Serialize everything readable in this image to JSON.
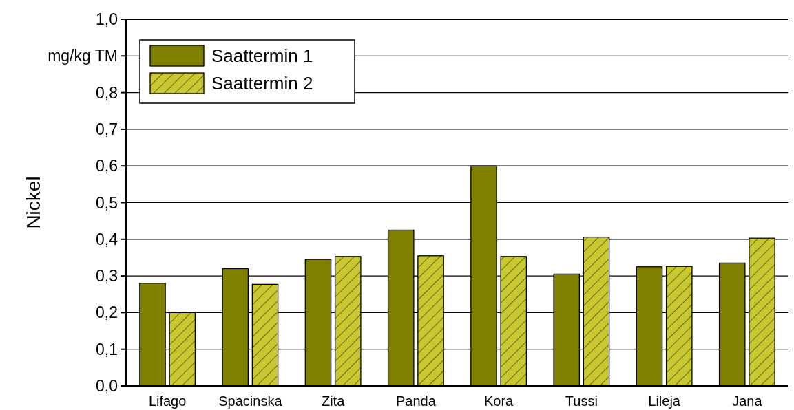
{
  "chart_data": {
    "type": "bar",
    "ylabel": "Nickel",
    "categories": [
      "Lifago",
      "Spacinska",
      "Zita",
      "Panda",
      "Kora",
      "Tussi",
      "Lileja",
      "Jana"
    ],
    "series": [
      {
        "name": "Saattermin 1",
        "color": "#808000",
        "values": [
          0.28,
          0.32,
          0.345,
          0.425,
          0.6,
          0.305,
          0.325,
          0.335
        ]
      },
      {
        "name": "Saattermin 2",
        "color": "#c8c832",
        "values": [
          0.2,
          0.277,
          0.353,
          0.355,
          0.353,
          0.406,
          0.326,
          0.403
        ]
      }
    ],
    "ylim": [
      0,
      1
    ],
    "yticks": [
      {
        "value": 0,
        "label": "0,0"
      },
      {
        "value": 0.1,
        "label": "0,1"
      },
      {
        "value": 0.2,
        "label": "0,2"
      },
      {
        "value": 0.3,
        "label": "0,3"
      },
      {
        "value": 0.4,
        "label": "0,4"
      },
      {
        "value": 0.5,
        "label": "0,5"
      },
      {
        "value": 0.6,
        "label": "0,6"
      },
      {
        "value": 0.7,
        "label": "0,7"
      },
      {
        "value": 0.8,
        "label": "0,8"
      },
      {
        "value": 0.9,
        "label": "mg/kg TM"
      },
      {
        "value": 1,
        "label": "1,0"
      }
    ],
    "grid": "y",
    "legend": "top left"
  }
}
